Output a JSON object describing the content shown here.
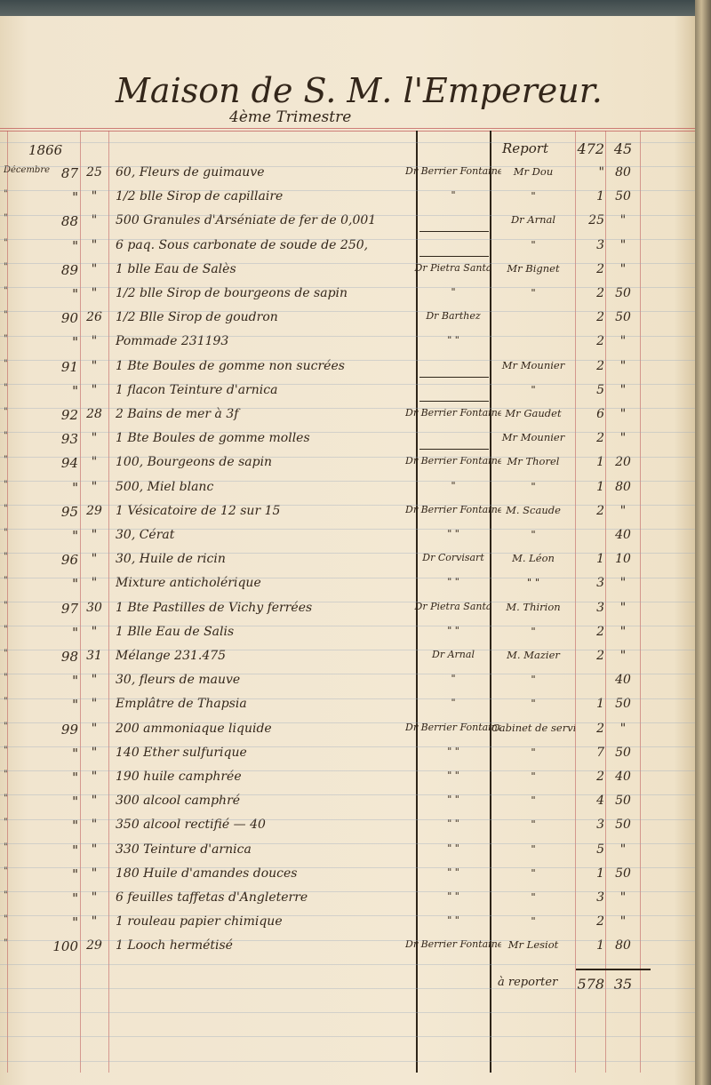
{
  "header": {
    "title": "Maison de S. M. l'Empereur.",
    "subtitle": "4ème Trimestre",
    "year": "1866"
  },
  "report": {
    "label": "Report",
    "francs": "472",
    "centimes": "45"
  },
  "carry_forward": {
    "label": "à reporter",
    "francs": "578",
    "centimes": "35"
  },
  "rows": [
    {
      "month": "Décembre",
      "num": "87",
      "day": "25",
      "desc": "60, Fleurs de guimauve",
      "doctor": "Dr Berrier Fontaine",
      "patient": "Mr Dou",
      "fr": "\"",
      "ct": "80"
    },
    {
      "month": "\"",
      "num": "\"",
      "day": "\"",
      "desc": "1/2 blle Sirop de capillaire",
      "doctor": "\"",
      "patient": "\"",
      "fr": "1",
      "ct": "50"
    },
    {
      "month": "\"",
      "num": "88",
      "day": "\"",
      "desc": "500 Granules d'Arséniate de fer de 0,001",
      "doctor": "—",
      "patient": "Dr Arnal",
      "fr": "25",
      "ct": "\""
    },
    {
      "month": "\"",
      "num": "\"",
      "day": "\"",
      "desc": "6 paq. Sous carbonate de soude de 250,",
      "doctor": "—",
      "patient": "\"",
      "fr": "3",
      "ct": "\""
    },
    {
      "month": "\"",
      "num": "89",
      "day": "\"",
      "desc": "1 blle Eau de Salès",
      "doctor": "Dr Pietra Santa",
      "patient": "Mr Bignet",
      "fr": "2",
      "ct": "\""
    },
    {
      "month": "\"",
      "num": "\"",
      "day": "\"",
      "desc": "1/2 blle Sirop de bourgeons de sapin",
      "doctor": "\"",
      "patient": "\"",
      "fr": "2",
      "ct": "50"
    },
    {
      "month": "\"",
      "num": "90",
      "day": "26",
      "desc": "1/2 Blle Sirop de goudron",
      "doctor": "Dr Barthez",
      "patient": "",
      "fr": "2",
      "ct": "50"
    },
    {
      "month": "\"",
      "num": "\"",
      "day": "\"",
      "desc": "Pommade 231193",
      "doctor": "\" \"",
      "patient": "",
      "fr": "2",
      "ct": "\""
    },
    {
      "month": "\"",
      "num": "91",
      "day": "\"",
      "desc": "1 Bte Boules de gomme non sucrées",
      "doctor": "—",
      "patient": "Mr Mounier",
      "fr": "2",
      "ct": "\""
    },
    {
      "month": "\"",
      "num": "\"",
      "day": "\"",
      "desc": "1 flacon Teinture d'arnica",
      "doctor": "—",
      "patient": "\"",
      "fr": "5",
      "ct": "\""
    },
    {
      "month": "\"",
      "num": "92",
      "day": "28",
      "desc": "2 Bains de mer à 3f",
      "doctor": "Dr Berrier Fontaine",
      "patient": "Mr Gaudet",
      "fr": "6",
      "ct": "\""
    },
    {
      "month": "\"",
      "num": "93",
      "day": "\"",
      "desc": "1 Bte Boules de gomme molles",
      "doctor": "—",
      "patient": "Mr Mounier",
      "fr": "2",
      "ct": "\""
    },
    {
      "month": "\"",
      "num": "94",
      "day": "\"",
      "desc": "100, Bourgeons de sapin",
      "doctor": "Dr Berrier Fontaine",
      "patient": "Mr Thorel",
      "fr": "1",
      "ct": "20"
    },
    {
      "month": "\"",
      "num": "\"",
      "day": "\"",
      "desc": "500, Miel blanc",
      "doctor": "\"",
      "patient": "\"",
      "fr": "1",
      "ct": "80"
    },
    {
      "month": "\"",
      "num": "95",
      "day": "29",
      "desc": "1 Vésicatoire de 12 sur 15",
      "doctor": "Dr Berrier Fontaine",
      "patient": "M. Scaude",
      "fr": "2",
      "ct": "\""
    },
    {
      "month": "\"",
      "num": "\"",
      "day": "\"",
      "desc": "30, Cérat",
      "doctor": "\" \"",
      "patient": "\"",
      "fr": "",
      "ct": "40"
    },
    {
      "month": "\"",
      "num": "96",
      "day": "\"",
      "desc": "30, Huile de ricin",
      "doctor": "Dr Corvisart",
      "patient": "M. Léon",
      "fr": "1",
      "ct": "10"
    },
    {
      "month": "\"",
      "num": "\"",
      "day": "\"",
      "desc": "Mixture anticholérique",
      "doctor": "\" \"",
      "patient": "\" \"",
      "fr": "3",
      "ct": "\""
    },
    {
      "month": "\"",
      "num": "97",
      "day": "30",
      "desc": "1 Bte Pastilles de Vichy ferrées",
      "doctor": "Dr Pietra Santa",
      "patient": "M. Thirion",
      "fr": "3",
      "ct": "\""
    },
    {
      "month": "\"",
      "num": "\"",
      "day": "\"",
      "desc": "1 Blle Eau de Salis",
      "doctor": "\" \"",
      "patient": "\"",
      "fr": "2",
      "ct": "\""
    },
    {
      "month": "\"",
      "num": "98",
      "day": "31",
      "desc": "Mélange 231.475",
      "doctor": "Dr Arnal",
      "patient": "M. Mazier",
      "fr": "2",
      "ct": "\""
    },
    {
      "month": "\"",
      "num": "\"",
      "day": "\"",
      "desc": "30, fleurs de mauve",
      "doctor": "\"",
      "patient": "\"",
      "fr": "",
      "ct": "40"
    },
    {
      "month": "\"",
      "num": "\"",
      "day": "\"",
      "desc": "Emplâtre de Thapsia",
      "doctor": "\"",
      "patient": "\"",
      "fr": "1",
      "ct": "50"
    },
    {
      "month": "\"",
      "num": "99",
      "day": "\"",
      "desc": "200 ammoniaque liquide",
      "doctor": "Dr Berrier Fontaine",
      "patient": "Cabinet de service",
      "fr": "2",
      "ct": "\""
    },
    {
      "month": "\"",
      "num": "\"",
      "day": "\"",
      "desc": "140 Ether sulfurique",
      "doctor": "\" \"",
      "patient": "\"",
      "fr": "7",
      "ct": "50"
    },
    {
      "month": "\"",
      "num": "\"",
      "day": "\"",
      "desc": "190 huile camphrée",
      "doctor": "\" \"",
      "patient": "\"",
      "fr": "2",
      "ct": "40"
    },
    {
      "month": "\"",
      "num": "\"",
      "day": "\"",
      "desc": "300 alcool camphré",
      "doctor": "\" \"",
      "patient": "\"",
      "fr": "4",
      "ct": "50"
    },
    {
      "month": "\"",
      "num": "\"",
      "day": "\"",
      "desc": "350 alcool rectifié — 40",
      "doctor": "\" \"",
      "patient": "\"",
      "fr": "3",
      "ct": "50"
    },
    {
      "month": "\"",
      "num": "\"",
      "day": "\"",
      "desc": "330 Teinture d'arnica",
      "doctor": "\" \"",
      "patient": "\"",
      "fr": "5",
      "ct": "\""
    },
    {
      "month": "\"",
      "num": "\"",
      "day": "\"",
      "desc": "180 Huile d'amandes douces",
      "doctor": "\" \"",
      "patient": "\"",
      "fr": "1",
      "ct": "50"
    },
    {
      "month": "\"",
      "num": "\"",
      "day": "\"",
      "desc": "6 feuilles taffetas d'Angleterre",
      "doctor": "\" \"",
      "patient": "\"",
      "fr": "3",
      "ct": "\""
    },
    {
      "month": "\"",
      "num": "\"",
      "day": "\"",
      "desc": "1 rouleau papier chimique",
      "doctor": "\" \"",
      "patient": "\"",
      "fr": "2",
      "ct": "\""
    },
    {
      "month": "\"",
      "num": "100",
      "day": "29",
      "desc": "1 Looch hermétisé",
      "doctor": "Dr Berrier Fontaine",
      "patient": "Mr Lesiot",
      "fr": "1",
      "ct": "80"
    }
  ]
}
